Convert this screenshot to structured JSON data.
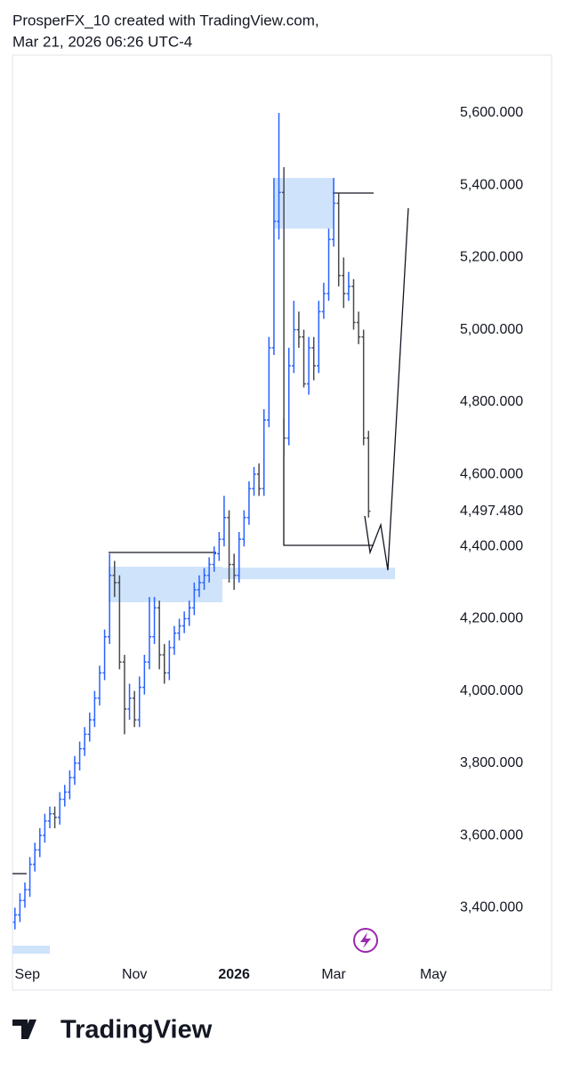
{
  "header": {
    "line1": "ProsperFX_10 created with TradingView.com,",
    "line2": "Mar 21, 2026 06:26 UTC-4"
  },
  "footer": {
    "brand": "TradingView"
  },
  "chart_data": {
    "type": "ohlc",
    "up_color": "#2962ff",
    "down_color": "#4a4a4a",
    "x": [
      0,
      1,
      2,
      3,
      4,
      5,
      6,
      7,
      8,
      9,
      10,
      11,
      12,
      13,
      14,
      15,
      16,
      17,
      18,
      19,
      20,
      21,
      22,
      23,
      24,
      25,
      26,
      27,
      28,
      29,
      30,
      31,
      32,
      33,
      34,
      35,
      36,
      37,
      38,
      39,
      40,
      41,
      42,
      43,
      44,
      45,
      46,
      47,
      48,
      49,
      50,
      51,
      52,
      53,
      54,
      55,
      56,
      57,
      58,
      59,
      60,
      61,
      62,
      63,
      64,
      65,
      66,
      67,
      68,
      69,
      70,
      71
    ],
    "open": [
      3360,
      3380,
      3420,
      3450,
      3520,
      3560,
      3600,
      3640,
      3660,
      3650,
      3700,
      3720,
      3760,
      3800,
      3840,
      3880,
      3920,
      3980,
      4050,
      4150,
      4320,
      4300,
      4080,
      3950,
      3980,
      3920,
      4010,
      4080,
      4150,
      4230,
      4100,
      4050,
      4120,
      4160,
      4180,
      4200,
      4230,
      4280,
      4300,
      4320,
      4350,
      4380,
      4420,
      4480,
      4350,
      4320,
      4420,
      4480,
      4560,
      4600,
      4560,
      4750,
      4950,
      5300,
      5380,
      4700,
      4900,
      5000,
      4980,
      4850,
      4950,
      4900,
      5050,
      5100,
      5250,
      5350,
      5150,
      5100,
      5120,
      5020,
      4980,
      4700
    ],
    "high": [
      3400,
      3440,
      3470,
      3540,
      3580,
      3620,
      3660,
      3680,
      3680,
      3720,
      3740,
      3780,
      3820,
      3860,
      3900,
      3940,
      4000,
      4070,
      4170,
      4380,
      4360,
      4320,
      4100,
      4020,
      4000,
      4040,
      4100,
      4260,
      4260,
      4250,
      4130,
      4140,
      4180,
      4200,
      4220,
      4250,
      4300,
      4320,
      4340,
      4370,
      4400,
      4440,
      4540,
      4500,
      4380,
      4440,
      4500,
      4580,
      4620,
      4630,
      4780,
      4980,
      5420,
      5600,
      5450,
      4950,
      5080,
      5050,
      5000,
      4980,
      4980,
      5080,
      5130,
      5280,
      5420,
      5380,
      5200,
      5160,
      5140,
      5050,
      5000,
      4720
    ],
    "low": [
      3340,
      3360,
      3400,
      3430,
      3500,
      3540,
      3580,
      3620,
      3620,
      3630,
      3680,
      3700,
      3740,
      3780,
      3820,
      3860,
      3900,
      3960,
      4030,
      4130,
      4260,
      4060,
      3880,
      3920,
      3900,
      3900,
      3990,
      4060,
      4130,
      4060,
      4020,
      4030,
      4100,
      4140,
      4160,
      4180,
      4210,
      4260,
      4280,
      4300,
      4330,
      4360,
      4400,
      4300,
      4280,
      4300,
      4400,
      4460,
      4540,
      4540,
      4540,
      4730,
      4930,
      5250,
      4650,
      4680,
      4880,
      4950,
      4840,
      4820,
      4860,
      4880,
      5030,
      5080,
      5230,
      5120,
      5060,
      5080,
      5000,
      4960,
      4680,
      4480
    ],
    "close": [
      3380,
      3420,
      3450,
      3520,
      3560,
      3600,
      3640,
      3660,
      3650,
      3700,
      3720,
      3760,
      3800,
      3840,
      3880,
      3920,
      3980,
      4050,
      4150,
      4320,
      4300,
      4080,
      3950,
      3980,
      3920,
      4010,
      4080,
      4150,
      4230,
      4100,
      4050,
      4120,
      4160,
      4180,
      4200,
      4230,
      4280,
      4300,
      4320,
      4350,
      4380,
      4420,
      4480,
      4350,
      4320,
      4420,
      4480,
      4560,
      4600,
      4560,
      4750,
      4950,
      5300,
      5380,
      4700,
      4900,
      5000,
      4980,
      4850,
      4950,
      4900,
      5050,
      5100,
      5250,
      5350,
      5150,
      5100,
      5120,
      5020,
      4980,
      4700,
      4497.48
    ],
    "xlim": [
      -0.5,
      87.2
    ],
    "xticks": [
      {
        "value": 2.5,
        "label": "Sep"
      },
      {
        "value": 24,
        "label": "Nov"
      },
      {
        "value": 44,
        "label": "2026"
      },
      {
        "value": 64,
        "label": "Mar"
      },
      {
        "value": 84,
        "label": "May"
      }
    ],
    "ylim": [
      3253,
      5760
    ],
    "yticks": [
      {
        "value": 3400,
        "label": "3,400.000"
      },
      {
        "value": 3600,
        "label": "3,600.000"
      },
      {
        "value": 3800,
        "label": "3,800.000"
      },
      {
        "value": 4000,
        "label": "4,000.000"
      },
      {
        "value": 4200,
        "label": "4,200.000"
      },
      {
        "value": 4400,
        "label": "4,400.000"
      },
      {
        "value": 4497.48,
        "label": "4,497.480"
      },
      {
        "value": 4600,
        "label": "4,600.000"
      },
      {
        "value": 4800,
        "label": "4,800.000"
      },
      {
        "value": 5000,
        "label": "5,000.000"
      },
      {
        "value": 5200,
        "label": "5,200.000"
      },
      {
        "value": 5400,
        "label": "5,400.000"
      },
      {
        "value": 5600,
        "label": "5,600.000"
      }
    ],
    "grid": false
  }
}
